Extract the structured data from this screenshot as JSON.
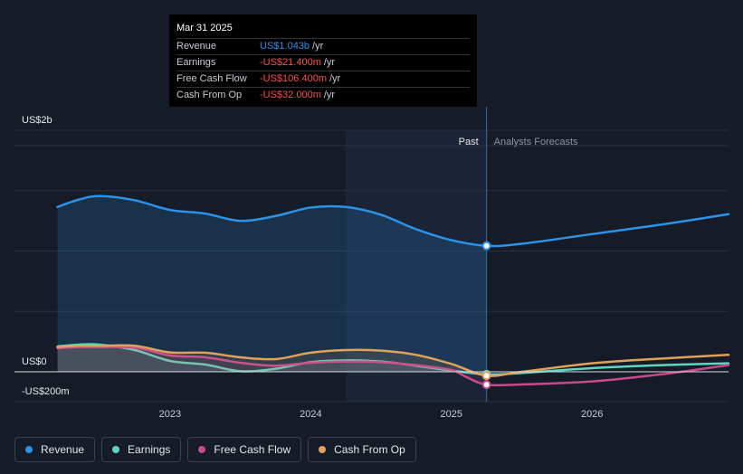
{
  "chart_data": {
    "type": "area",
    "y_unit": "US$m",
    "ylim": [
      -200,
      2000
    ],
    "xlim": [
      2022.1,
      2026.97
    ],
    "x_ticks": [
      2023,
      2024,
      2025,
      2026
    ],
    "x_tick_labels": [
      "2023",
      "2024",
      "2025",
      "2026"
    ],
    "y_axis_labels": [
      {
        "value": 2000,
        "label": "US$2b"
      },
      {
        "value": 0,
        "label": "US$0"
      },
      {
        "value": -200,
        "label": "-US$200m"
      }
    ],
    "past_label": "Past",
    "forecast_label": "Analysts Forecasts",
    "highlight_range": [
      2024.25,
      2025.25
    ],
    "divider_x": 2025.25,
    "series": [
      {
        "name": "Revenue",
        "color": "#2c93e8",
        "fill": true,
        "x": [
          2022.2,
          2022.35,
          2022.5,
          2022.75,
          2023.0,
          2023.25,
          2023.5,
          2023.75,
          2024.0,
          2024.25,
          2024.5,
          2024.75,
          2025.0,
          2025.25,
          2025.5,
          2026.0,
          2026.5,
          2026.97
        ],
        "y": [
          1365,
          1425,
          1455,
          1420,
          1340,
          1310,
          1250,
          1290,
          1360,
          1365,
          1300,
          1180,
          1090,
          1043,
          1060,
          1140,
          1220,
          1305
        ]
      },
      {
        "name": "Earnings",
        "color": "#5ed6c4",
        "fill": true,
        "x": [
          2022.2,
          2022.35,
          2022.5,
          2022.75,
          2023.0,
          2023.25,
          2023.5,
          2023.75,
          2024.0,
          2024.25,
          2024.5,
          2024.75,
          2025.0,
          2025.25,
          2025.5,
          2026.0,
          2026.5,
          2026.97
        ],
        "y": [
          210,
          225,
          225,
          180,
          90,
          60,
          5,
          25,
          80,
          95,
          85,
          50,
          10,
          -21.4,
          -10,
          30,
          55,
          70
        ]
      },
      {
        "name": "Free Cash Flow",
        "color": "#c9488e",
        "fill": true,
        "x": [
          2022.2,
          2022.35,
          2022.5,
          2022.75,
          2023.0,
          2023.25,
          2023.5,
          2023.75,
          2024.0,
          2024.25,
          2024.5,
          2024.75,
          2025.0,
          2025.1,
          2025.25,
          2025.5,
          2026.0,
          2026.5,
          2026.97
        ],
        "y": [
          195,
          205,
          205,
          200,
          135,
          120,
          75,
          50,
          75,
          85,
          80,
          55,
          15,
          -40,
          -106.4,
          -105,
          -80,
          -20,
          55
        ]
      },
      {
        "name": "Cash From Op",
        "color": "#e0a25b",
        "fill": true,
        "x": [
          2022.2,
          2022.35,
          2022.5,
          2022.75,
          2023.0,
          2023.25,
          2023.5,
          2023.75,
          2024.0,
          2024.25,
          2024.5,
          2024.75,
          2025.0,
          2025.25,
          2025.5,
          2026.0,
          2026.5,
          2026.97
        ],
        "y": [
          205,
          215,
          215,
          215,
          160,
          158,
          120,
          105,
          158,
          180,
          175,
          140,
          65,
          -32,
          0,
          70,
          110,
          140
        ]
      }
    ],
    "markers": [
      {
        "series": "Revenue",
        "x": 2025.25,
        "y": 1043
      },
      {
        "series": "Earnings",
        "x": 2025.25,
        "y": -21.4
      },
      {
        "series": "Free Cash Flow",
        "x": 2025.25,
        "y": -106.4
      },
      {
        "series": "Cash From Op",
        "x": 2025.25,
        "y": -32
      }
    ]
  },
  "tooltip": {
    "date": "Mar 31 2025",
    "rows": [
      {
        "label": "Revenue",
        "value": "US$1.043b",
        "unit": "/yr",
        "color": "#2c93e8"
      },
      {
        "label": "Earnings",
        "value": "-US$21.400m",
        "unit": "/yr",
        "color": "#ff4d4d"
      },
      {
        "label": "Free Cash Flow",
        "value": "-US$106.400m",
        "unit": "/yr",
        "color": "#ff4d4d"
      },
      {
        "label": "Cash From Op",
        "value": "-US$32.000m",
        "unit": "/yr",
        "color": "#ff4d4d"
      }
    ]
  },
  "legend": [
    {
      "label": "Revenue",
      "color": "#2c93e8"
    },
    {
      "label": "Earnings",
      "color": "#5ed6c4"
    },
    {
      "label": "Free Cash Flow",
      "color": "#c9488e"
    },
    {
      "label": "Cash From Op",
      "color": "#e0a25b"
    }
  ]
}
